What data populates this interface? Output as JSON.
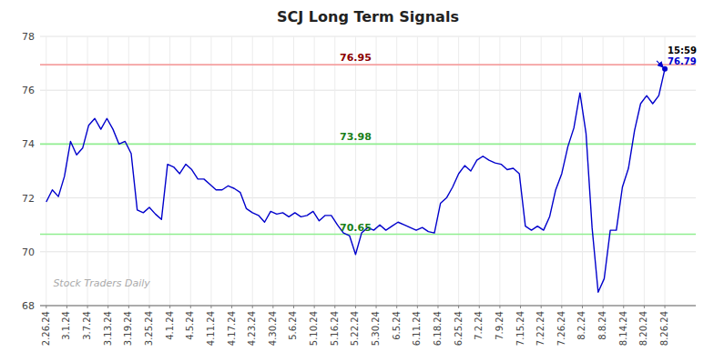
{
  "chart_data": {
    "type": "line",
    "title": "SCJ Long Term Signals",
    "color": "#0000cc",
    "grid": true,
    "ylim": [
      68,
      78
    ],
    "yticks": [
      68,
      70,
      72,
      74,
      76,
      78
    ],
    "xlim": [
      -0.3,
      31.5
    ],
    "xticks": [
      {
        "value": 0,
        "label": "2.26.24"
      },
      {
        "value": 1,
        "label": "3.1.24"
      },
      {
        "value": 2,
        "label": "3.7.24"
      },
      {
        "value": 3,
        "label": "3.13.24"
      },
      {
        "value": 4,
        "label": "3.19.24"
      },
      {
        "value": 5,
        "label": "3.25.24"
      },
      {
        "value": 6,
        "label": "4.1.24"
      },
      {
        "value": 7,
        "label": "4.5.24"
      },
      {
        "value": 8,
        "label": "4.11.24"
      },
      {
        "value": 9,
        "label": "4.17.24"
      },
      {
        "value": 10,
        "label": "4.23.24"
      },
      {
        "value": 11,
        "label": "4.30.24"
      },
      {
        "value": 12,
        "label": "5.6.24"
      },
      {
        "value": 13,
        "label": "5.10.24"
      },
      {
        "value": 14,
        "label": "5.16.24"
      },
      {
        "value": 15,
        "label": "5.22.24"
      },
      {
        "value": 16,
        "label": "5.30.24"
      },
      {
        "value": 17,
        "label": "6.5.24"
      },
      {
        "value": 18,
        "label": "6.11.24"
      },
      {
        "value": 19,
        "label": "6.18.24"
      },
      {
        "value": 20,
        "label": "6.25.24"
      },
      {
        "value": 21,
        "label": "7.2.24"
      },
      {
        "value": 22,
        "label": "7.9.24"
      },
      {
        "value": 23,
        "label": "7.15.24"
      },
      {
        "value": 24,
        "label": "7.22.24"
      },
      {
        "value": 25,
        "label": "7.26.24"
      },
      {
        "value": 26,
        "label": "8.2.24"
      },
      {
        "value": 27,
        "label": "8.8.24"
      },
      {
        "value": 28,
        "label": "8.14.24"
      },
      {
        "value": 29,
        "label": "8.20.24"
      },
      {
        "value": 30,
        "label": "8.26.24"
      }
    ],
    "values": [
      71.85,
      72.3,
      72.05,
      72.8,
      74.1,
      73.6,
      73.85,
      74.7,
      74.95,
      74.55,
      74.95,
      74.55,
      74.0,
      74.1,
      73.65,
      71.55,
      71.45,
      71.65,
      71.4,
      71.2,
      73.25,
      73.15,
      72.9,
      73.25,
      73.05,
      72.7,
      72.7,
      72.5,
      72.3,
      72.3,
      72.45,
      72.35,
      72.2,
      71.6,
      71.45,
      71.35,
      71.1,
      71.5,
      71.4,
      71.45,
      71.3,
      71.45,
      71.3,
      71.35,
      71.5,
      71.15,
      71.35,
      71.35,
      71.0,
      70.7,
      70.6,
      69.9,
      70.7,
      70.9,
      70.8,
      71.0,
      70.8,
      70.95,
      71.1,
      71.0,
      70.9,
      70.8,
      70.9,
      70.75,
      70.7,
      71.8,
      72.0,
      72.4,
      72.9,
      73.2,
      73.0,
      73.4,
      73.55,
      73.4,
      73.3,
      73.25,
      73.05,
      73.1,
      72.9,
      70.95,
      70.8,
      70.95,
      70.8,
      71.3,
      72.3,
      72.9,
      73.9,
      74.6,
      75.9,
      74.4,
      70.9,
      68.5,
      69.0,
      70.8,
      70.8,
      72.4,
      73.1,
      74.5,
      75.5,
      75.8,
      75.5,
      75.8,
      76.79
    ],
    "reference_lines": [
      {
        "value": 76.95,
        "label": "76.95",
        "color": "#f5a0a0"
      },
      {
        "value": 74.0,
        "label": "73.98",
        "color": "#90ee90"
      },
      {
        "value": 70.65,
        "label": "70.65",
        "color": "#90ee90"
      }
    ],
    "annotations": [
      "15:59",
      "76.79"
    ],
    "watermark": "Stock Traders Daily"
  }
}
